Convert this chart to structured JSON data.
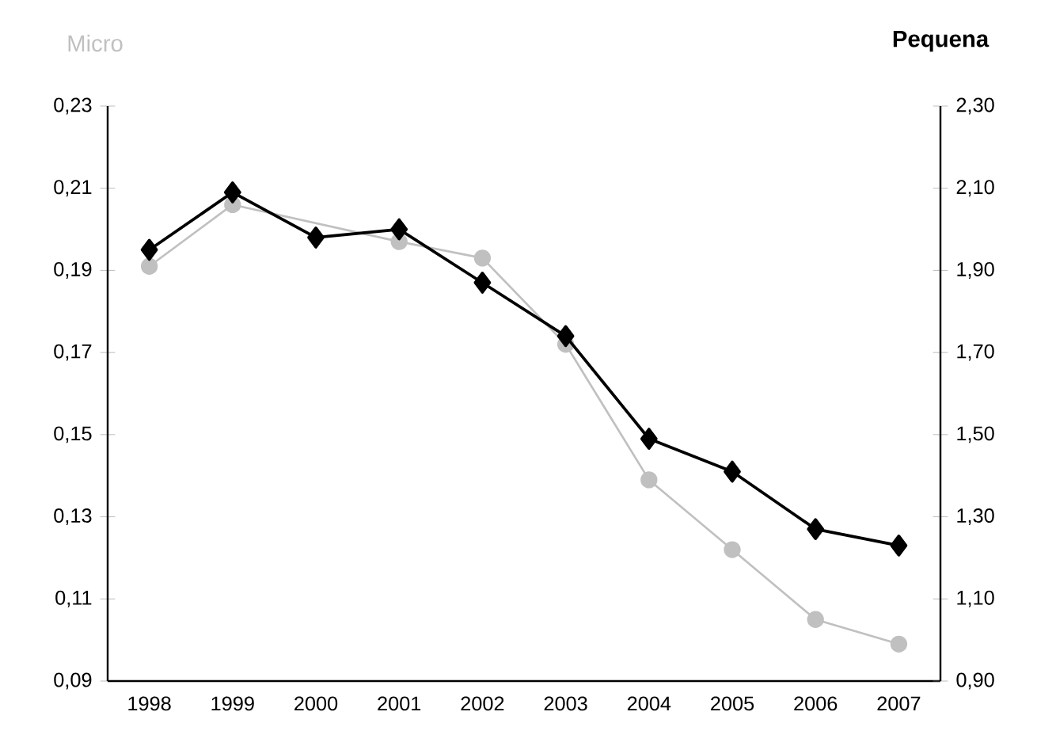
{
  "chart_data": {
    "type": "line",
    "categories": [
      "1998",
      "1999",
      "2000",
      "2001",
      "2002",
      "2003",
      "2004",
      "2005",
      "2006",
      "2007"
    ],
    "ylabel": "Micro",
    "y2label": "Pequena",
    "ylim": [
      0.09,
      0.23
    ],
    "yticks": [
      {
        "value": 0.09,
        "label": "0,09"
      },
      {
        "value": 0.11,
        "label": "0,11"
      },
      {
        "value": 0.13,
        "label": "0,13"
      },
      {
        "value": 0.15,
        "label": "0,15"
      },
      {
        "value": 0.17,
        "label": "0,17"
      },
      {
        "value": 0.19,
        "label": "0,19"
      },
      {
        "value": 0.21,
        "label": "0,21"
      },
      {
        "value": 0.23,
        "label": "0,23"
      }
    ],
    "y2lim": [
      0.9,
      2.3
    ],
    "y2ticks": [
      {
        "value": 0.9,
        "label": "0,90"
      },
      {
        "value": 1.1,
        "label": "1,10"
      },
      {
        "value": 1.3,
        "label": "1,30"
      },
      {
        "value": 1.5,
        "label": "1,50"
      },
      {
        "value": 1.7,
        "label": "1,70"
      },
      {
        "value": 1.9,
        "label": "1,90"
      },
      {
        "value": 2.1,
        "label": "2,10"
      },
      {
        "value": 2.3,
        "label": "2,30"
      }
    ],
    "series": [
      {
        "color": "#c0c0c0",
        "marker": "circle",
        "values": [
          0.191,
          0.206,
          null,
          0.197,
          0.193,
          0.172,
          0.139,
          0.122,
          0.105,
          0.099
        ]
      },
      {
        "color": "#000000",
        "marker": "diamond",
        "axis": "y2",
        "values": [
          1.95,
          2.09,
          1.98,
          2.0,
          1.87,
          1.74,
          1.49,
          1.41,
          1.27,
          1.23
        ]
      }
    ]
  }
}
